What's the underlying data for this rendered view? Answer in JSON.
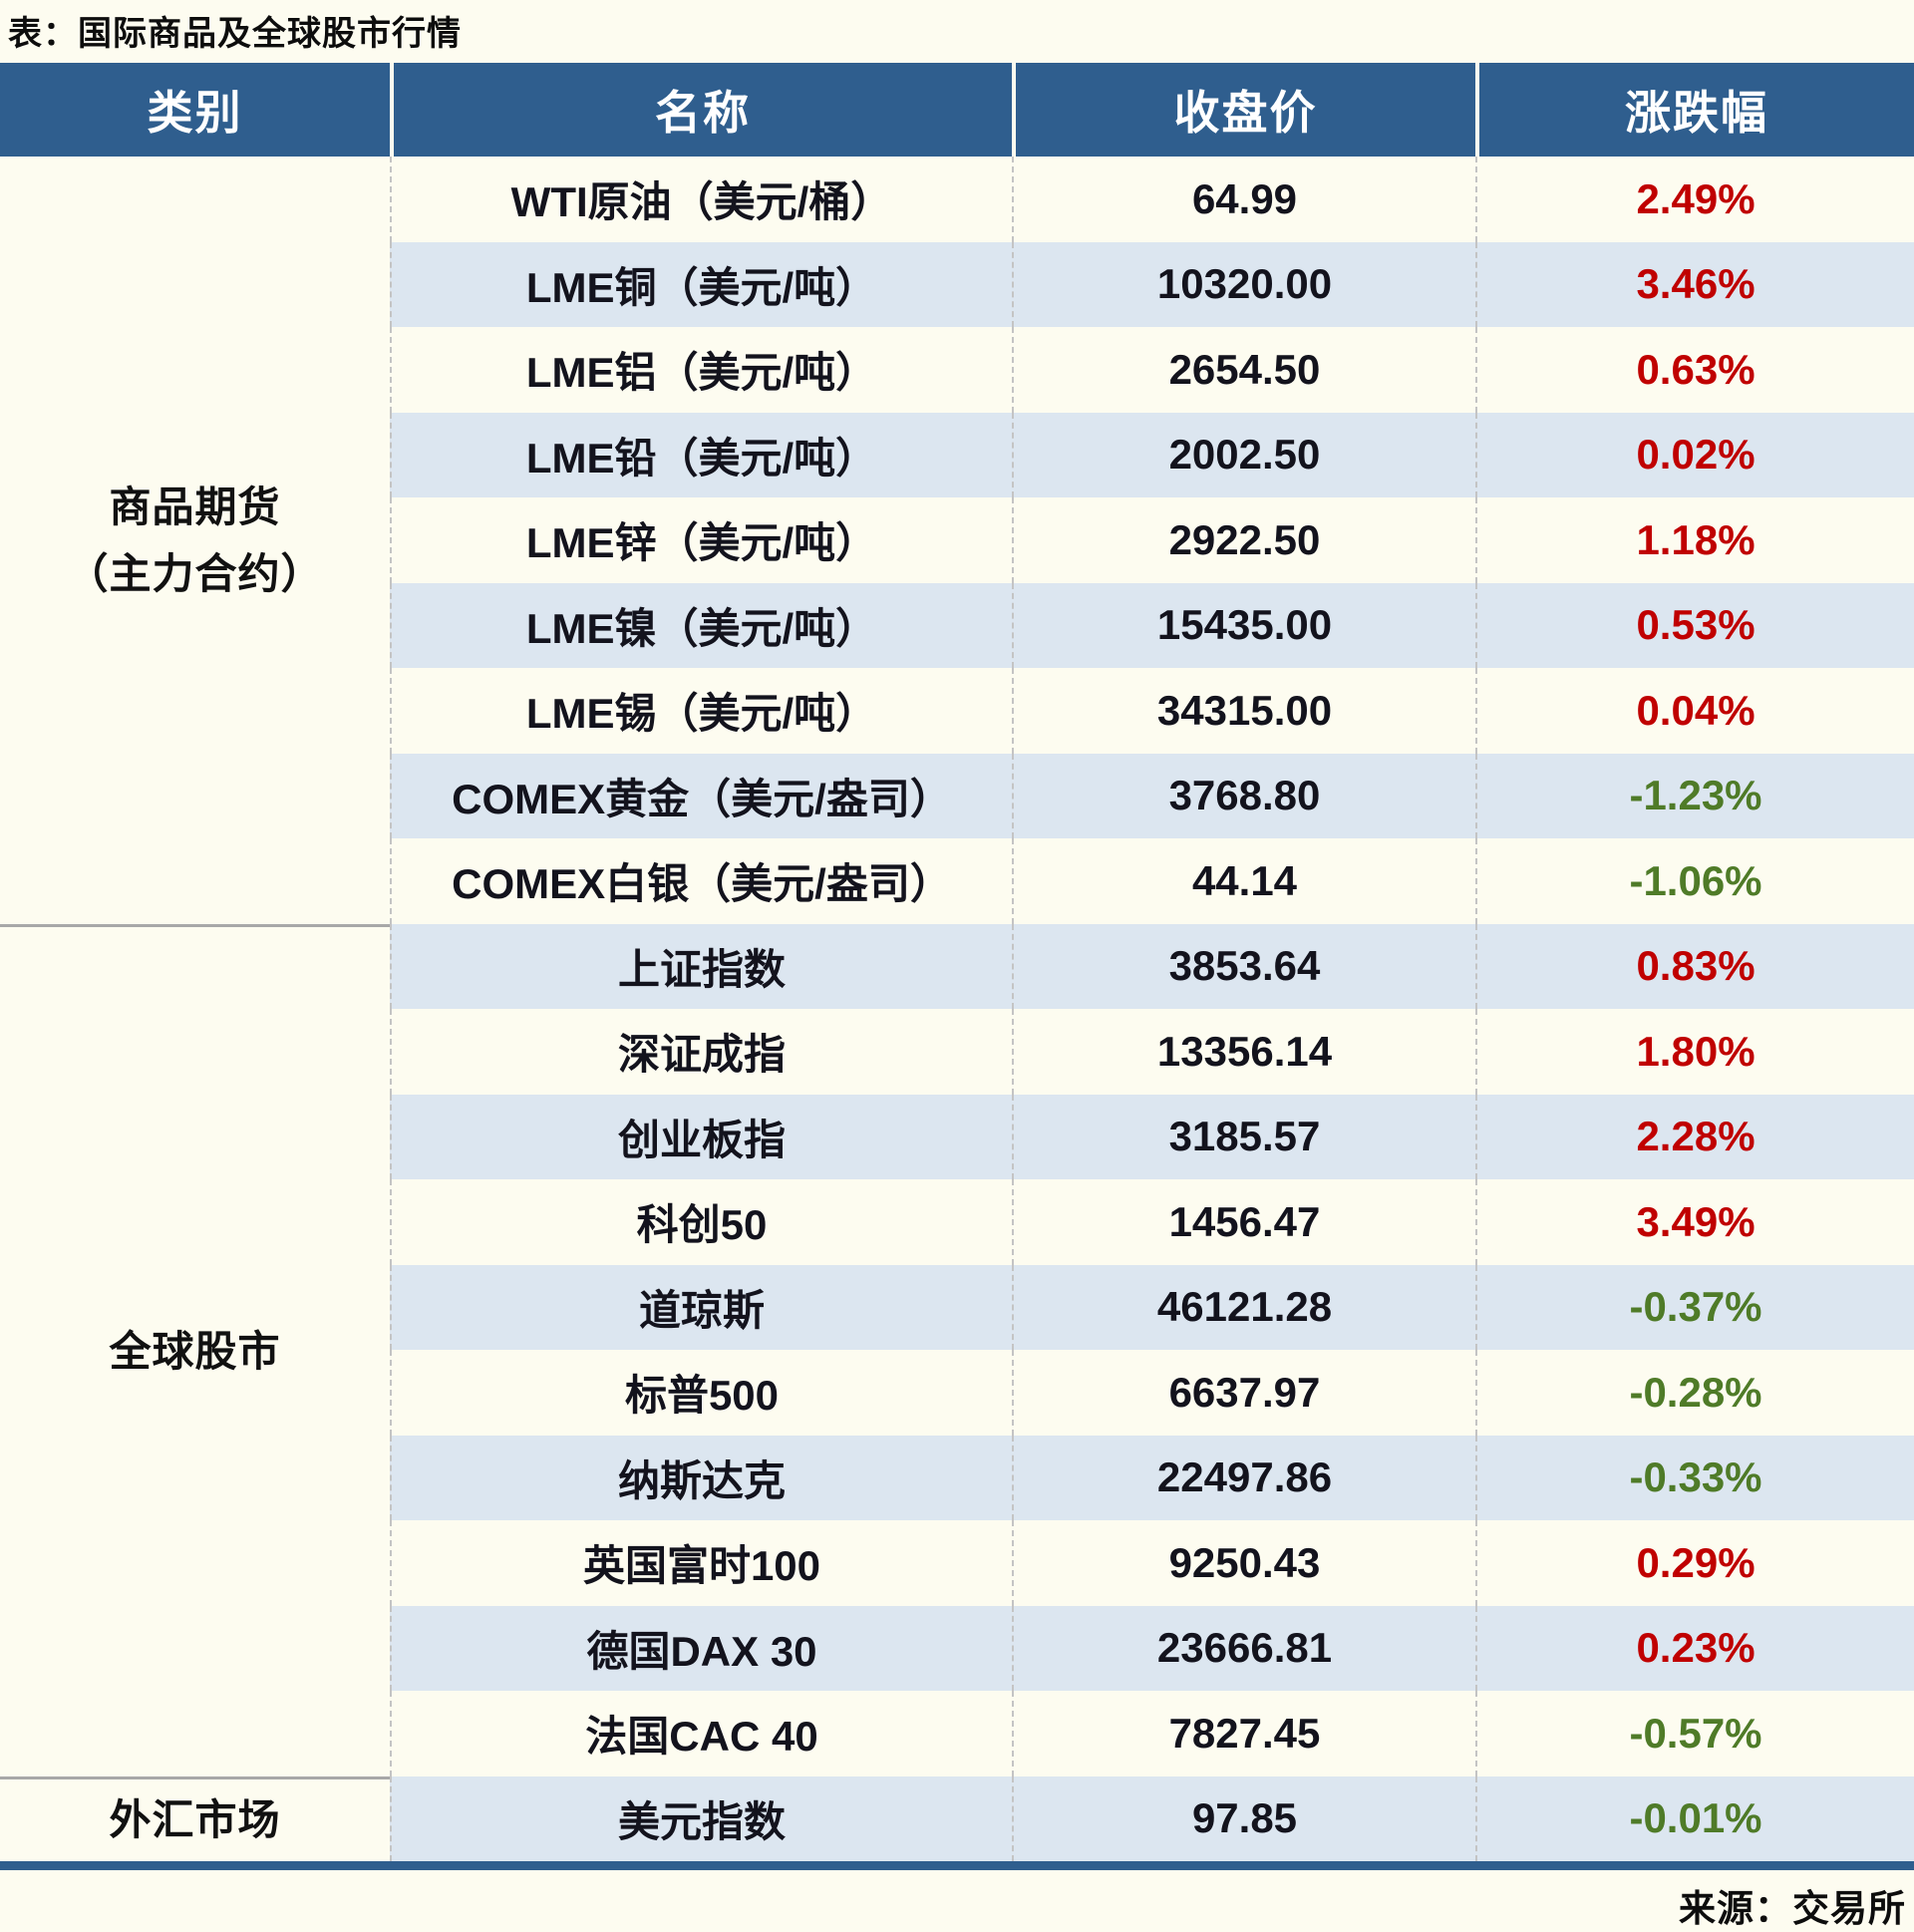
{
  "page_title": "表：国际商品及全球股市行情",
  "source_note": "来源：交易所",
  "colors": {
    "header_bg": "#2F5E8E",
    "band_blue": "#DCE6F0",
    "page_bg": "#FDFCF0",
    "positive_red": "#C00000",
    "negative_green": "#4F7B28"
  },
  "chart_data": {
    "type": "table",
    "title": "表：国际商品及全球股市行情",
    "source": "来源：交易所",
    "columns": [
      "类别",
      "名称",
      "收盘价",
      "涨跌幅"
    ],
    "sections": [
      {
        "category": "商品期货\n（主力合约）",
        "rows": [
          {
            "name": "WTI原油（美元/桶）",
            "close": "64.99",
            "change": "2.49%",
            "dir": "up"
          },
          {
            "name": "LME铜（美元/吨）",
            "close": "10320.00",
            "change": "3.46%",
            "dir": "up"
          },
          {
            "name": "LME铝（美元/吨）",
            "close": "2654.50",
            "change": "0.63%",
            "dir": "up"
          },
          {
            "name": "LME铅（美元/吨）",
            "close": "2002.50",
            "change": "0.02%",
            "dir": "up"
          },
          {
            "name": "LME锌（美元/吨）",
            "close": "2922.50",
            "change": "1.18%",
            "dir": "up"
          },
          {
            "name": "LME镍（美元/吨）",
            "close": "15435.00",
            "change": "0.53%",
            "dir": "up"
          },
          {
            "name": "LME锡（美元/吨）",
            "close": "34315.00",
            "change": "0.04%",
            "dir": "up"
          },
          {
            "name": "COMEX黄金（美元/盎司）",
            "close": "3768.80",
            "change": "-1.23%",
            "dir": "down"
          },
          {
            "name": "COMEX白银（美元/盎司）",
            "close": "44.14",
            "change": "-1.06%",
            "dir": "down"
          }
        ]
      },
      {
        "category": "全球股市",
        "rows": [
          {
            "name": "上证指数",
            "close": "3853.64",
            "change": "0.83%",
            "dir": "up"
          },
          {
            "name": "深证成指",
            "close": "13356.14",
            "change": "1.80%",
            "dir": "up"
          },
          {
            "name": "创业板指",
            "close": "3185.57",
            "change": "2.28%",
            "dir": "up"
          },
          {
            "name": "科创50",
            "close": "1456.47",
            "change": "3.49%",
            "dir": "up"
          },
          {
            "name": "道琼斯",
            "close": "46121.28",
            "change": "-0.37%",
            "dir": "down"
          },
          {
            "name": "标普500",
            "close": "6637.97",
            "change": "-0.28%",
            "dir": "down"
          },
          {
            "name": "纳斯达克",
            "close": "22497.86",
            "change": "-0.33%",
            "dir": "down"
          },
          {
            "name": "英国富时100",
            "close": "9250.43",
            "change": "0.29%",
            "dir": "up"
          },
          {
            "name": "德国DAX 30",
            "close": "23666.81",
            "change": "0.23%",
            "dir": "up"
          },
          {
            "name": "法国CAC 40",
            "close": "7827.45",
            "change": "-0.57%",
            "dir": "down"
          }
        ]
      },
      {
        "category": "外汇市场",
        "rows": [
          {
            "name": "美元指数",
            "close": "97.85",
            "change": "-0.01%",
            "dir": "down"
          }
        ]
      }
    ]
  }
}
